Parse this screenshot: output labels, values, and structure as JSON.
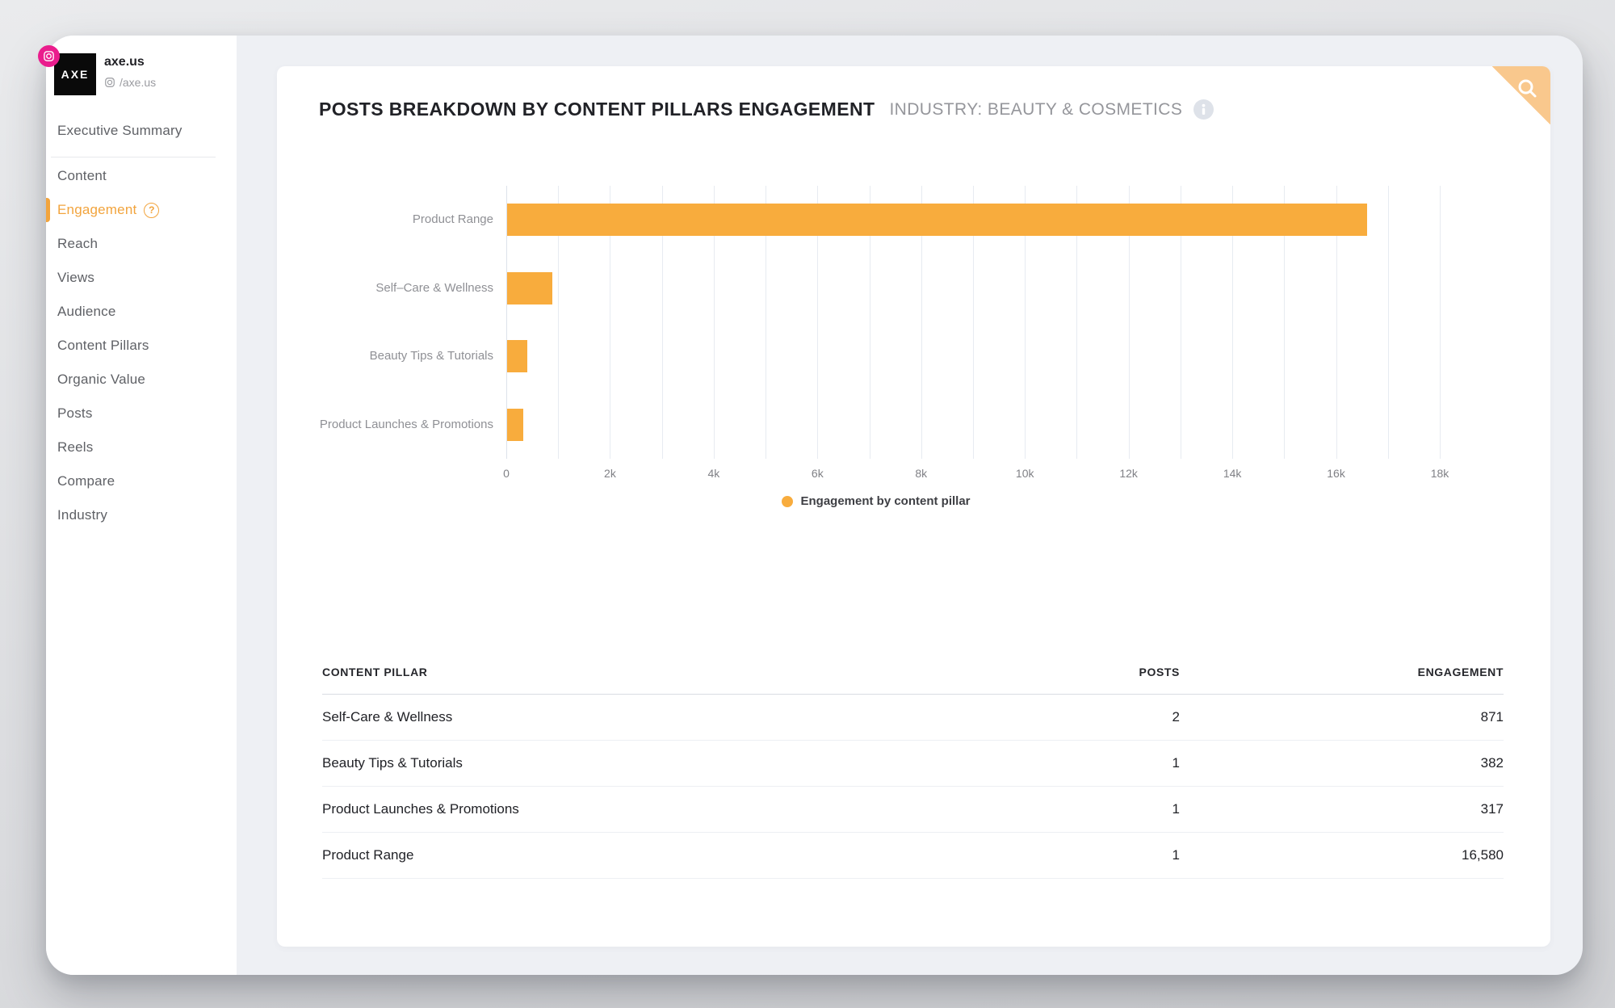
{
  "profile": {
    "name": "axe.us",
    "handle": "/axe.us",
    "avatar_text": "AXE"
  },
  "sidebar": {
    "summary": "Executive Summary",
    "items": [
      {
        "label": "Content",
        "active": false,
        "has_help": false
      },
      {
        "label": "Engagement",
        "active": true,
        "has_help": true
      },
      {
        "label": "Reach",
        "active": false,
        "has_help": false
      },
      {
        "label": "Views",
        "active": false,
        "has_help": false
      },
      {
        "label": "Audience",
        "active": false,
        "has_help": false
      },
      {
        "label": "Content Pillars",
        "active": false,
        "has_help": false
      },
      {
        "label": "Organic Value",
        "active": false,
        "has_help": false
      },
      {
        "label": "Posts",
        "active": false,
        "has_help": false
      },
      {
        "label": "Reels",
        "active": false,
        "has_help": false
      },
      {
        "label": "Compare",
        "active": false,
        "has_help": false
      },
      {
        "label": "Industry",
        "active": false,
        "has_help": false
      }
    ]
  },
  "header": {
    "title": "POSTS BREAKDOWN BY CONTENT PILLARS ENGAGEMENT",
    "subtitle": "INDUSTRY: BEAUTY & COSMETICS"
  },
  "colors": {
    "accent": "#F8AC3D",
    "accent_soft": "#F9C88D",
    "active_nav": "#F2A43D",
    "instagram_pink": "#EA1D8D"
  },
  "chart_data": {
    "type": "bar",
    "orientation": "horizontal",
    "categories": [
      "Product Range",
      "Self–Care & Wellness",
      "Beauty Tips & Tutorials",
      "Product Launches & Promotions"
    ],
    "values": [
      16580,
      871,
      382,
      317
    ],
    "xlim": [
      0,
      18000
    ],
    "gridline_step": 1000,
    "grid": true,
    "x_ticks": [
      {
        "value": 0,
        "label": "0"
      },
      {
        "value": 2000,
        "label": "2k"
      },
      {
        "value": 4000,
        "label": "4k"
      },
      {
        "value": 6000,
        "label": "6k"
      },
      {
        "value": 8000,
        "label": "8k"
      },
      {
        "value": 10000,
        "label": "10k"
      },
      {
        "value": 12000,
        "label": "12k"
      },
      {
        "value": 14000,
        "label": "14k"
      },
      {
        "value": 16000,
        "label": "16k"
      },
      {
        "value": 18000,
        "label": "18k"
      }
    ],
    "bar_color": "#F8AC3D",
    "legend": {
      "label": "Engagement by content pillar",
      "position": "bottom-center"
    }
  },
  "table": {
    "headers": [
      "CONTENT PILLAR",
      "POSTS",
      "ENGAGEMENT"
    ],
    "rows": [
      {
        "pillar": "Self-Care & Wellness",
        "posts": "2",
        "engagement": "871"
      },
      {
        "pillar": "Beauty Tips & Tutorials",
        "posts": "1",
        "engagement": "382"
      },
      {
        "pillar": "Product Launches & Promotions",
        "posts": "1",
        "engagement": "317"
      },
      {
        "pillar": "Product Range",
        "posts": "1",
        "engagement": "16,580"
      }
    ]
  }
}
